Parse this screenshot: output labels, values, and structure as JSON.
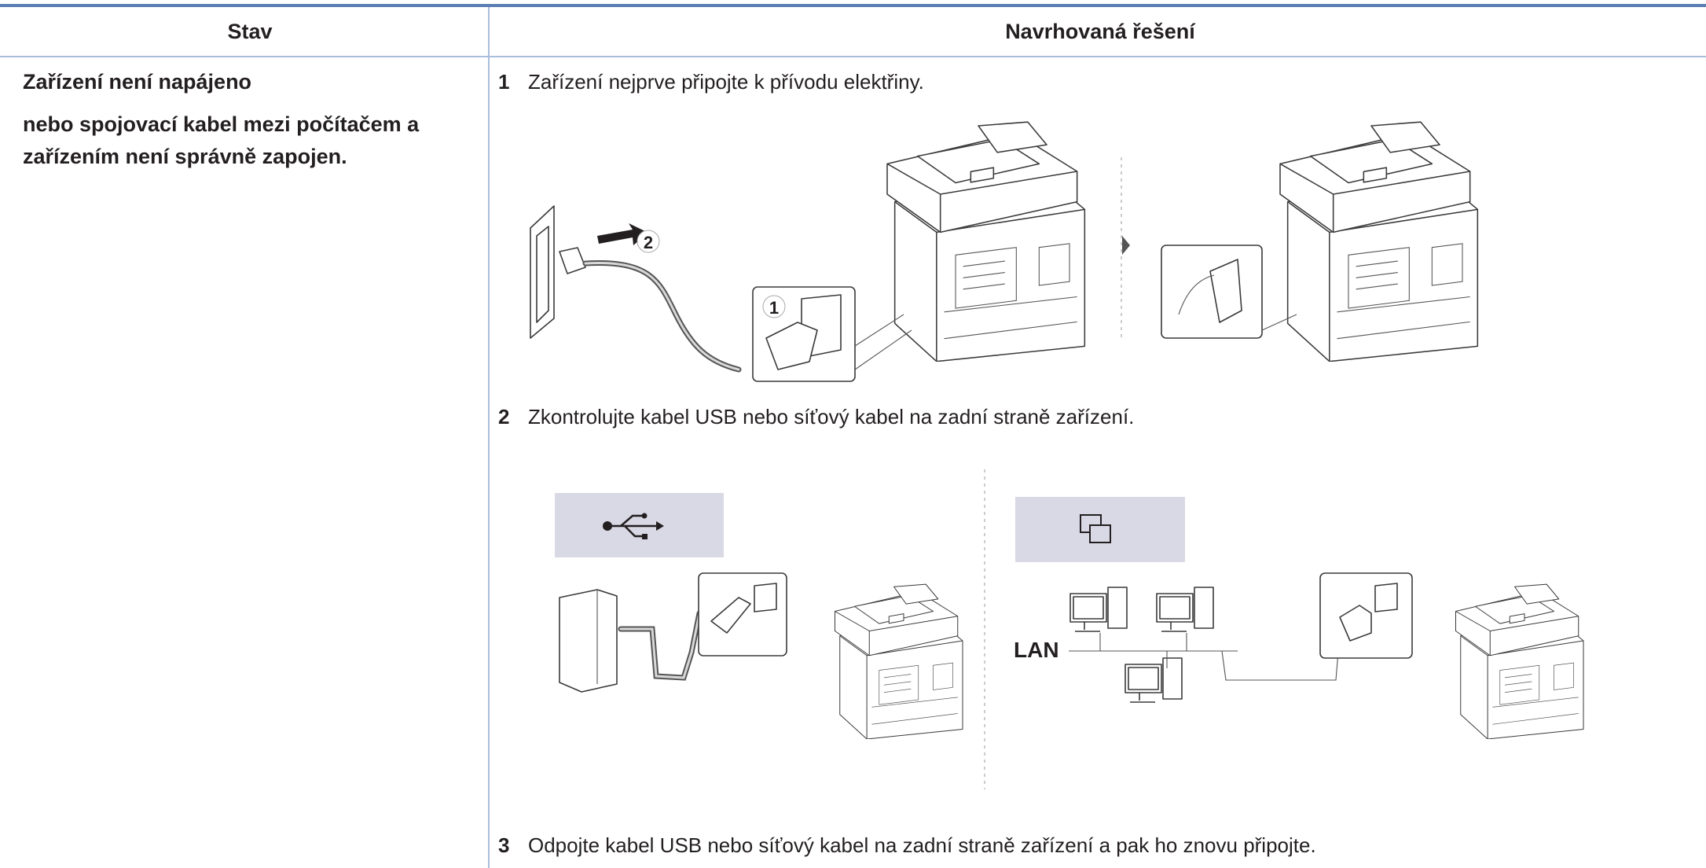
{
  "table": {
    "headers": [
      "Stav",
      "Navrhovaná řešení"
    ],
    "rows": [
      {
        "condition": [
          "Zařízení není napájeno",
          "nebo spojovací kabel mezi počítačem a",
          "zařízením není správně zapojen."
        ],
        "steps": [
          {
            "number": "1",
            "text": "Zařízení nejprve připojte k přívodu elektřiny."
          },
          {
            "number": "2",
            "text": "Zkontrolujte kabel USB nebo síťový kabel na zadní straně zařízení."
          },
          {
            "number": "3",
            "text": "Odpojte kabel USB nebo síťový kabel na zadní straně zařízení a pak ho znovu připojte."
          }
        ]
      }
    ]
  },
  "illustrations": {
    "power": {
      "callouts": [
        "1",
        "2"
      ]
    },
    "connection": {
      "lan_label": "LAN"
    }
  }
}
